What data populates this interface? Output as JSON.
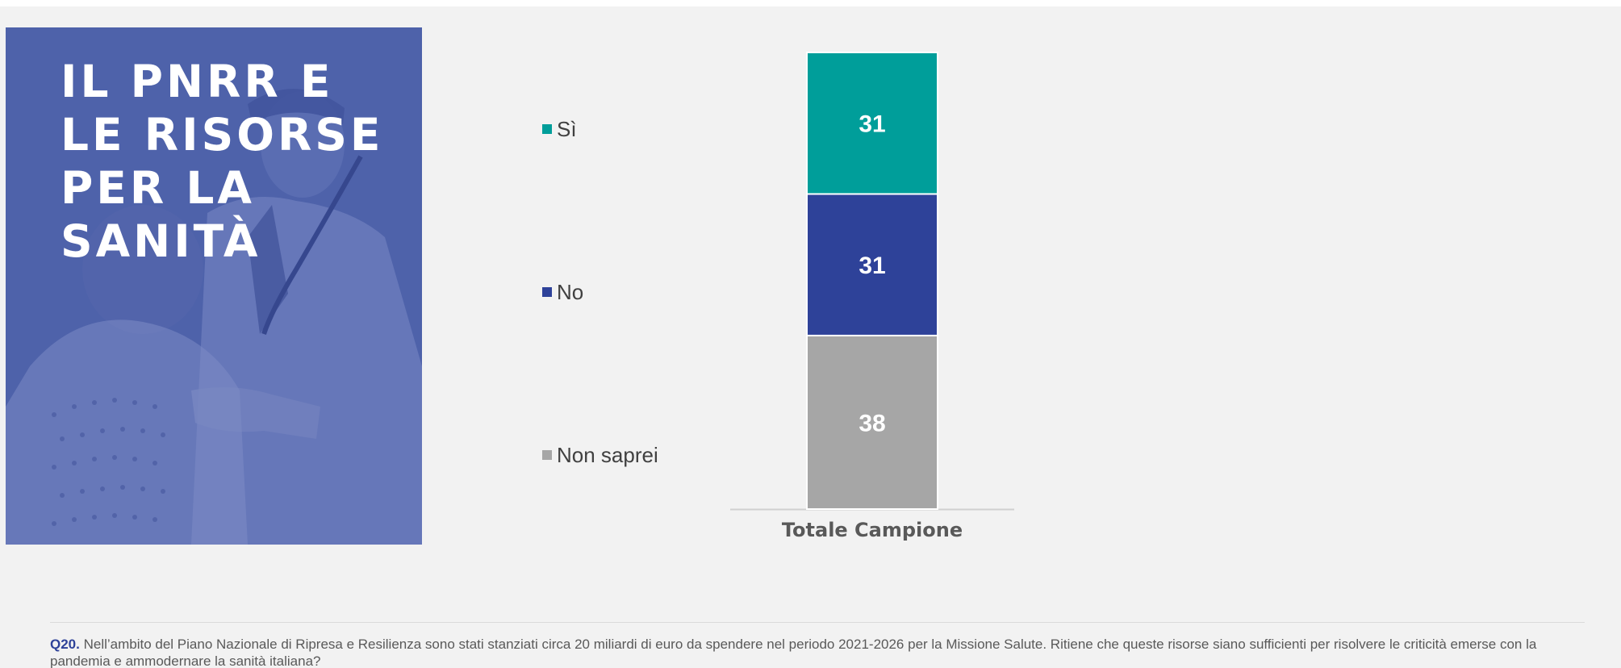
{
  "panel": {
    "title": "IL PNRR E\nLE RISORSE\nPER LA\nSANITÀ",
    "color": "#4a5fa8"
  },
  "chart_data": {
    "type": "bar",
    "stacked": true,
    "categories": [
      "Totale Campione"
    ],
    "series": [
      {
        "name": "Non saprei",
        "values": [
          38
        ],
        "color": "#a6a6a6"
      },
      {
        "name": "No",
        "values": [
          31
        ],
        "color": "#2e4299"
      },
      {
        "name": "Sì",
        "values": [
          31
        ],
        "color": "#009e9a"
      }
    ],
    "ylim": [
      0,
      100
    ],
    "grid": false,
    "legend_position": "left",
    "data_labels": true
  },
  "footnote": {
    "qid": "Q20.",
    "text": " Nell’ambito del Piano Nazionale di Ripresa e Resilienza sono stati stanziati circa 20 miliardi di euro da spendere nel periodo 2021-2026 per la Missione Salute. Ritiene che queste risorse siano sufficienti per risolvere le criticità emerse con la pandemia e ammodernare la sanità italiana?"
  }
}
